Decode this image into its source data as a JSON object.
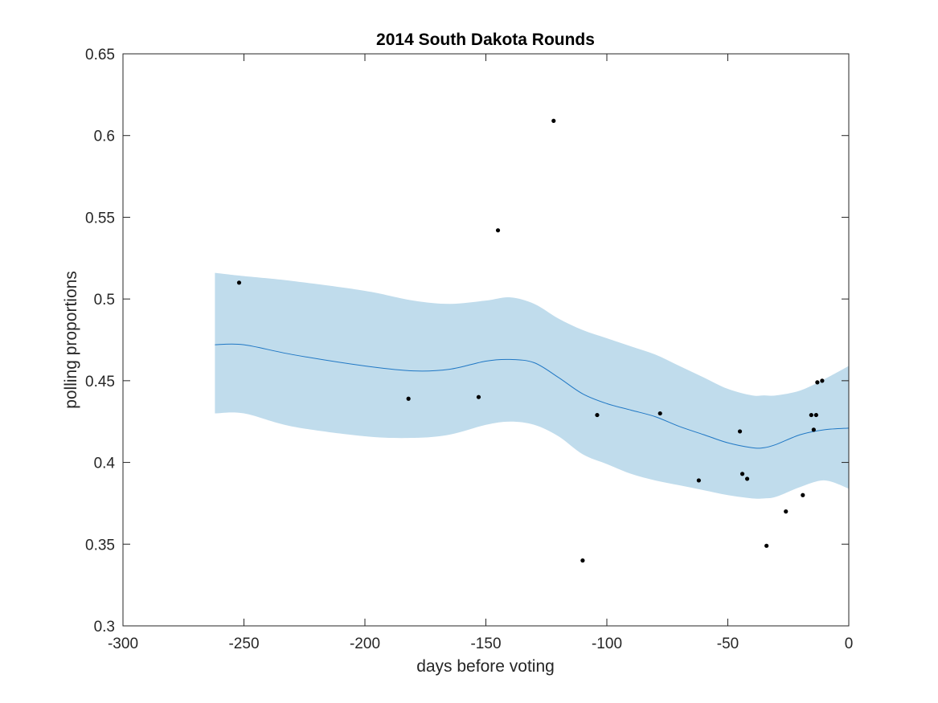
{
  "chart_data": {
    "type": "line",
    "title": "2014 South Dakota Rounds",
    "xlabel": "days before voting",
    "ylabel": "polling proportions",
    "xlim": [
      -300,
      0
    ],
    "ylim": [
      0.3,
      0.65
    ],
    "xticks": [
      -300,
      -250,
      -200,
      -150,
      -100,
      -50,
      0
    ],
    "xtick_labels": [
      "-300",
      "-250",
      "-200",
      "-150",
      "-100",
      "-50",
      "0"
    ],
    "yticks": [
      0.3,
      0.35,
      0.4,
      0.45,
      0.5,
      0.55,
      0.6,
      0.65
    ],
    "ytick_labels": [
      "0.3",
      "0.35",
      "0.4",
      "0.45",
      "0.5",
      "0.55",
      "0.6",
      "0.65"
    ],
    "grid": false,
    "colors": {
      "band": "#c0dcec",
      "line": "#1f77c4",
      "points": "#000000",
      "axes": "#262626"
    },
    "mean_line": {
      "x": [
        -262,
        -250,
        -230,
        -200,
        -180,
        -165,
        -150,
        -140,
        -130,
        -120,
        -110,
        -100,
        -90,
        -80,
        -70,
        -60,
        -50,
        -40,
        -35,
        -30,
        -20,
        -10,
        0
      ],
      "y": [
        0.472,
        0.472,
        0.466,
        0.459,
        0.456,
        0.457,
        0.462,
        0.463,
        0.461,
        0.452,
        0.442,
        0.436,
        0.432,
        0.428,
        0.422,
        0.417,
        0.412,
        0.409,
        0.409,
        0.411,
        0.417,
        0.42,
        0.421
      ]
    },
    "band": {
      "x": [
        -262,
        -250,
        -230,
        -200,
        -180,
        -165,
        -150,
        -140,
        -130,
        -120,
        -110,
        -100,
        -90,
        -80,
        -70,
        -60,
        -50,
        -40,
        -35,
        -30,
        -20,
        -10,
        0
      ],
      "upper": [
        0.516,
        0.514,
        0.511,
        0.505,
        0.499,
        0.497,
        0.499,
        0.501,
        0.497,
        0.488,
        0.481,
        0.476,
        0.471,
        0.466,
        0.459,
        0.452,
        0.445,
        0.441,
        0.441,
        0.441,
        0.444,
        0.451,
        0.459
      ],
      "lower": [
        0.43,
        0.43,
        0.422,
        0.416,
        0.415,
        0.417,
        0.423,
        0.425,
        0.423,
        0.416,
        0.405,
        0.399,
        0.393,
        0.389,
        0.386,
        0.383,
        0.38,
        0.378,
        0.378,
        0.379,
        0.385,
        0.389,
        0.384
      ]
    },
    "points": {
      "x": [
        -252,
        -182,
        -153,
        -145,
        -122,
        -110,
        -104,
        -78,
        -62,
        -45,
        -44,
        -42,
        -34,
        -26,
        -19,
        -15.5,
        -14.5,
        -13.5,
        -13,
        -11
      ],
      "y": [
        0.51,
        0.439,
        0.44,
        0.542,
        0.609,
        0.34,
        0.429,
        0.43,
        0.389,
        0.419,
        0.393,
        0.39,
        0.349,
        0.37,
        0.38,
        0.429,
        0.42,
        0.429,
        0.449,
        0.45
      ]
    }
  }
}
